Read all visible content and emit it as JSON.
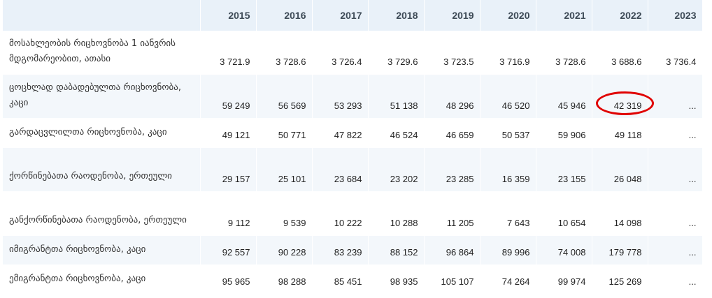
{
  "table": {
    "years": [
      "2015",
      "2016",
      "2017",
      "2018",
      "2019",
      "2020",
      "2021",
      "2022",
      "2023"
    ],
    "rows": [
      {
        "label": "მოსახლეობის რიცხოვნობა 1 იანვრის მდგომარეობით, ათასი",
        "values": [
          "3 721.9",
          "3 728.6",
          "3 726.4",
          "3 729.6",
          "3 723.5",
          "3 716.9",
          "3 728.6",
          "3 688.6",
          "3 736.4"
        ]
      },
      {
        "label": "ცოცხლად დაბადებულთა რიცხოვნობა, კაცი",
        "values": [
          "59 249",
          "56 569",
          "53 293",
          "51 138",
          "48 296",
          "46 520",
          "45 946",
          "42 319",
          "..."
        ]
      },
      {
        "label": "გარდაცვლილთა რიცხოვნობა, კაცი",
        "values": [
          "49 121",
          "50 771",
          "47 822",
          "46 524",
          "46 659",
          "50 537",
          "59 906",
          "49 118",
          "..."
        ]
      },
      {
        "label": "ქორწინებათა რაოდენობა, ერთეული",
        "values": [
          "29 157",
          "25 101",
          "23 684",
          "23 202",
          "23 285",
          "16 359",
          "23 155",
          "26 048",
          "..."
        ]
      },
      {
        "label": "განქორწინებათა რაოდენობა, ერთეული",
        "values": [
          "9 112",
          "9 539",
          "10 222",
          "10 288",
          "11 205",
          "7 643",
          "10 654",
          "14 098",
          "..."
        ]
      },
      {
        "label": "იმიგრანტთა რიცხოვნობა, კაცი",
        "values": [
          "92 557",
          "90 228",
          "83 239",
          "88 152",
          "96 864",
          "89 996",
          "74 008",
          "179 778",
          "..."
        ]
      },
      {
        "label": "ემიგრანტთა რიცხოვნობა, კაცი",
        "values": [
          "95 965",
          "98 288",
          "85 451",
          "98 935",
          "105 107",
          "74 264",
          "99 974",
          "125 269",
          "..."
        ]
      }
    ]
  },
  "annotation": {
    "color": "#e00000",
    "highlighted_value": "42 319"
  },
  "colors": {
    "header_bg": "#e9f1f9",
    "stripe_bg": "#f3f7fb"
  }
}
